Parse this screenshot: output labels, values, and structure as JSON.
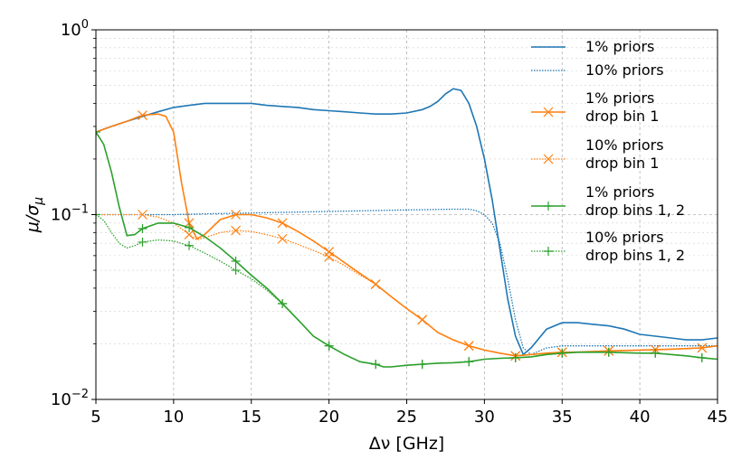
{
  "chart_data": {
    "type": "line",
    "xlabel": "Δν [GHz]",
    "ylabel": "μ/σ_μ",
    "xlim": [
      5,
      45
    ],
    "ylim": [
      0.01,
      1
    ],
    "yscale": "log",
    "x_ticks": [
      "5",
      "10",
      "15",
      "20",
      "25",
      "30",
      "35",
      "40",
      "45"
    ],
    "x_tick_values": [
      5,
      10,
      15,
      20,
      25,
      30,
      35,
      40,
      45
    ],
    "y_ticks": [
      {
        "value": 0.01,
        "base": "10",
        "exp": "−2"
      },
      {
        "value": 0.1,
        "base": "10",
        "exp": "−1"
      },
      {
        "value": 1,
        "base": "10",
        "exp": "0"
      }
    ],
    "grid": true,
    "legend_position": "top-right",
    "series": [
      {
        "name": "1% priors",
        "legend_lines": [
          "1% priors"
        ],
        "color": "#1f77b4",
        "style": "solid",
        "marker": "none",
        "x": [
          5,
          6,
          7,
          8,
          9,
          10,
          11,
          12,
          13,
          14,
          15,
          16,
          17,
          18,
          19,
          20,
          21,
          22,
          23,
          24,
          25,
          26,
          26.5,
          27,
          27.5,
          28,
          28.5,
          29,
          29.5,
          30,
          30.5,
          31,
          31.5,
          32,
          32.5,
          33,
          34,
          35,
          36,
          37,
          38,
          39,
          40,
          41,
          42,
          43,
          44,
          45
        ],
        "y": [
          0.28,
          0.3,
          0.32,
          0.34,
          0.36,
          0.38,
          0.39,
          0.4,
          0.4,
          0.4,
          0.4,
          0.39,
          0.385,
          0.38,
          0.37,
          0.365,
          0.36,
          0.355,
          0.35,
          0.35,
          0.355,
          0.37,
          0.385,
          0.41,
          0.45,
          0.48,
          0.47,
          0.4,
          0.3,
          0.2,
          0.12,
          0.065,
          0.035,
          0.022,
          0.0175,
          0.019,
          0.024,
          0.026,
          0.026,
          0.0255,
          0.025,
          0.024,
          0.0225,
          0.022,
          0.0215,
          0.021,
          0.021,
          0.0215
        ]
      },
      {
        "name": "10% priors",
        "legend_lines": [
          "10% priors"
        ],
        "color": "#1f77b4",
        "style": "dotted",
        "marker": "none",
        "x": [
          5,
          8,
          10,
          12,
          15,
          20,
          25,
          28,
          29,
          29.5,
          30,
          30.5,
          31,
          31.5,
          32,
          32.5,
          33,
          34,
          35,
          36,
          38,
          40,
          42,
          45
        ],
        "y": [
          0.1,
          0.1,
          0.1,
          0.101,
          0.102,
          0.104,
          0.106,
          0.107,
          0.107,
          0.105,
          0.1,
          0.09,
          0.07,
          0.045,
          0.027,
          0.019,
          0.0175,
          0.019,
          0.0195,
          0.0195,
          0.0195,
          0.0195,
          0.0195,
          0.0195
        ]
      },
      {
        "name": "1% priors drop bin 1",
        "legend_lines": [
          "1% priors",
          "drop bin 1"
        ],
        "color": "#ff7f0e",
        "style": "solid",
        "marker": "x",
        "marker_x": [
          8,
          11,
          14,
          17,
          20,
          23,
          26,
          29,
          32,
          35,
          38,
          41,
          44
        ],
        "x": [
          5,
          6,
          7,
          8,
          9,
          9.5,
          10,
          10.5,
          11,
          11.5,
          12,
          13,
          14,
          15,
          16,
          17,
          18,
          19,
          20,
          21,
          22,
          23,
          24,
          25,
          26,
          27,
          28,
          29,
          30,
          31,
          32,
          33,
          34,
          35,
          36,
          38,
          40,
          41,
          42,
          44,
          45
        ],
        "y": [
          0.28,
          0.3,
          0.32,
          0.345,
          0.35,
          0.34,
          0.28,
          0.15,
          0.09,
          0.074,
          0.078,
          0.094,
          0.1,
          0.1,
          0.096,
          0.09,
          0.081,
          0.072,
          0.063,
          0.055,
          0.048,
          0.042,
          0.036,
          0.031,
          0.027,
          0.023,
          0.021,
          0.0195,
          0.0185,
          0.0178,
          0.0172,
          0.0175,
          0.0178,
          0.018,
          0.018,
          0.0183,
          0.0185,
          0.0186,
          0.0187,
          0.019,
          0.0195
        ]
      },
      {
        "name": "10% priors drop bin 1",
        "legend_lines": [
          "10% priors",
          "drop bin 1"
        ],
        "color": "#ff7f0e",
        "style": "dotted",
        "marker": "x",
        "marker_x": [
          8,
          11,
          14,
          17,
          20,
          23,
          26,
          29,
          32,
          35,
          38,
          41,
          44
        ],
        "x": [
          5,
          6,
          7,
          8,
          9,
          10,
          11,
          11.5,
          12,
          13,
          14,
          15,
          16,
          17,
          18,
          19,
          20,
          21,
          22,
          23,
          24,
          25,
          26,
          27,
          28,
          29,
          30,
          31,
          32,
          33,
          34,
          35,
          38,
          40,
          41,
          42,
          44,
          45
        ],
        "y": [
          0.1,
          0.1,
          0.1,
          0.1,
          0.097,
          0.09,
          0.078,
          0.073,
          0.075,
          0.08,
          0.082,
          0.081,
          0.078,
          0.074,
          0.069,
          0.064,
          0.059,
          0.053,
          0.047,
          0.042,
          0.036,
          0.031,
          0.027,
          0.023,
          0.021,
          0.0195,
          0.0185,
          0.0178,
          0.0172,
          0.0175,
          0.0178,
          0.018,
          0.0183,
          0.0185,
          0.0186,
          0.0187,
          0.019,
          0.0195
        ]
      },
      {
        "name": "1% priors drop bins 1, 2",
        "legend_lines": [
          "1% priors",
          "drop bins 1, 2"
        ],
        "color": "#2ca02c",
        "style": "solid",
        "marker": "+",
        "marker_x": [
          5,
          8,
          11,
          14,
          17,
          20,
          23,
          26,
          29,
          32,
          35,
          38,
          41,
          44
        ],
        "x": [
          5,
          5.5,
          6,
          6.5,
          7,
          7.5,
          8,
          9,
          10,
          11,
          12,
          13,
          14,
          15,
          16,
          17,
          18,
          19,
          20,
          21,
          22,
          23,
          23.5,
          24,
          25,
          26,
          27,
          28,
          29,
          30,
          31,
          32,
          33,
          34,
          35,
          36,
          37,
          38,
          39,
          40,
          41,
          42,
          43,
          44,
          45
        ],
        "y": [
          0.28,
          0.24,
          0.17,
          0.11,
          0.077,
          0.078,
          0.084,
          0.09,
          0.09,
          0.085,
          0.076,
          0.066,
          0.056,
          0.047,
          0.04,
          0.033,
          0.027,
          0.022,
          0.0195,
          0.0175,
          0.016,
          0.0155,
          0.015,
          0.015,
          0.0153,
          0.0155,
          0.0157,
          0.0158,
          0.016,
          0.0165,
          0.0167,
          0.0168,
          0.017,
          0.0175,
          0.0178,
          0.018,
          0.018,
          0.018,
          0.0179,
          0.0178,
          0.0178,
          0.0175,
          0.0172,
          0.0168,
          0.0165
        ]
      },
      {
        "name": "10% priors drop bins 1, 2",
        "legend_lines": [
          "10% priors",
          "drop bins 1, 2"
        ],
        "color": "#2ca02c",
        "style": "dotted",
        "marker": "+",
        "marker_x": [
          5,
          8,
          11,
          14,
          17,
          20,
          23,
          26,
          29,
          32,
          35,
          38,
          41,
          44
        ],
        "x": [
          5,
          5.5,
          6,
          6.5,
          7,
          7.5,
          8,
          9,
          10,
          11,
          12,
          13,
          14,
          15,
          16,
          17,
          18,
          19,
          20,
          21,
          22,
          23,
          23.5,
          24,
          25,
          26,
          27,
          28,
          29,
          30,
          31,
          32,
          33,
          34,
          35,
          36,
          37,
          38,
          39,
          40,
          41,
          42,
          43,
          44,
          45
        ],
        "y": [
          0.1,
          0.093,
          0.08,
          0.07,
          0.066,
          0.068,
          0.071,
          0.073,
          0.072,
          0.068,
          0.062,
          0.056,
          0.05,
          0.045,
          0.039,
          0.033,
          0.027,
          0.022,
          0.0195,
          0.0175,
          0.016,
          0.0155,
          0.015,
          0.015,
          0.0153,
          0.0155,
          0.0157,
          0.0158,
          0.016,
          0.0165,
          0.0167,
          0.0168,
          0.017,
          0.0175,
          0.0178,
          0.018,
          0.018,
          0.018,
          0.0179,
          0.0178,
          0.0178,
          0.0175,
          0.0172,
          0.0168,
          0.0165
        ]
      }
    ]
  }
}
